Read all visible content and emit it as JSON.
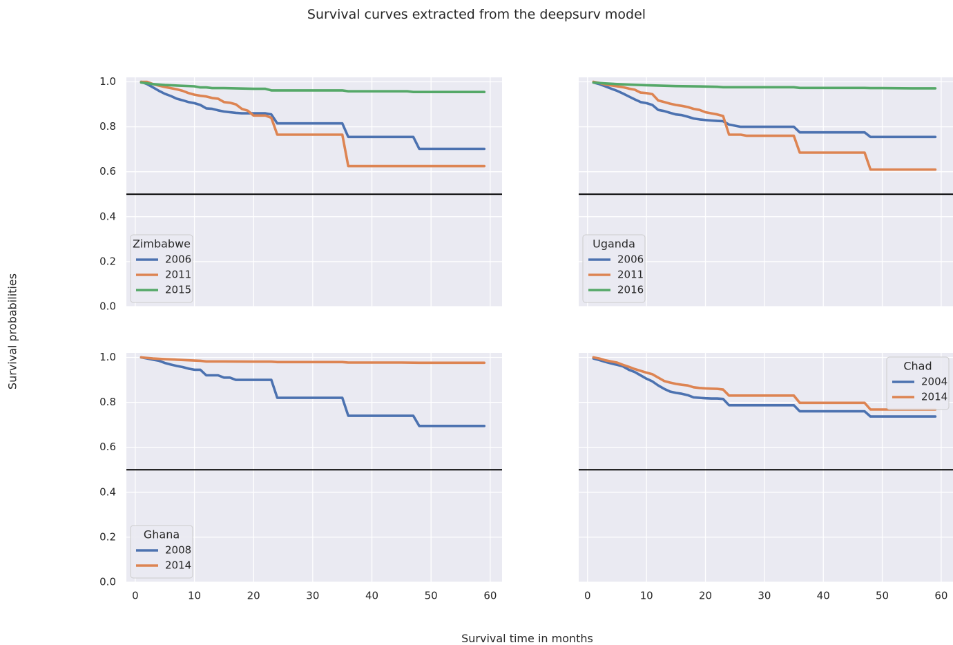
{
  "figure": {
    "title": "Survival curves extracted from the deepsurv model",
    "xlabel": "Survival time in months",
    "ylabel": "Survival probabilities"
  },
  "colors": {
    "axes_bg": "#eaeaf2",
    "grid": "#ffffff",
    "series": [
      "#4c72b0",
      "#dd8452",
      "#55a868"
    ],
    "threshold_line": "#000000",
    "text": "#262626"
  },
  "chart_data": [
    {
      "type": "line",
      "panel": "top-left",
      "legend_title": "Zimbabwe",
      "legend_position": "lower-left",
      "xlim": [
        -1.5,
        62
      ],
      "ylim": [
        0,
        1.02
      ],
      "xticks": [],
      "yticks": [
        0.0,
        0.2,
        0.4,
        0.6,
        0.8,
        1.0
      ],
      "grid": true,
      "hline": 0.5,
      "series": [
        {
          "name": "2006",
          "x": [
            1,
            2,
            3,
            4,
            5,
            6,
            7,
            8,
            9,
            10,
            11,
            12,
            13,
            14,
            15,
            16,
            17,
            18,
            19,
            20,
            21,
            22,
            23,
            24,
            25,
            30,
            35,
            36,
            40,
            45,
            47,
            48,
            50,
            55,
            59
          ],
          "y": [
            1.0,
            0.99,
            0.975,
            0.96,
            0.947,
            0.937,
            0.925,
            0.918,
            0.91,
            0.905,
            0.897,
            0.882,
            0.88,
            0.873,
            0.868,
            0.865,
            0.862,
            0.86,
            0.86,
            0.86,
            0.86,
            0.86,
            0.855,
            0.815,
            0.815,
            0.815,
            0.815,
            0.755,
            0.755,
            0.755,
            0.755,
            0.702,
            0.702,
            0.702,
            0.702
          ]
        },
        {
          "name": "2011",
          "x": [
            1,
            2,
            3,
            4,
            5,
            6,
            7,
            8,
            9,
            10,
            11,
            12,
            13,
            14,
            15,
            16,
            17,
            18,
            19,
            20,
            21,
            22,
            23,
            24,
            25,
            30,
            35,
            36,
            40,
            45,
            50,
            55,
            59
          ],
          "y": [
            1.0,
            1.0,
            0.99,
            0.983,
            0.977,
            0.972,
            0.967,
            0.96,
            0.95,
            0.943,
            0.938,
            0.935,
            0.928,
            0.925,
            0.91,
            0.907,
            0.9,
            0.88,
            0.872,
            0.85,
            0.85,
            0.85,
            0.84,
            0.765,
            0.765,
            0.765,
            0.765,
            0.625,
            0.625,
            0.625,
            0.625,
            0.625,
            0.625
          ]
        },
        {
          "name": "2015",
          "x": [
            1,
            3,
            5,
            10,
            11,
            12,
            13,
            15,
            20,
            21,
            22,
            23,
            25,
            30,
            35,
            36,
            40,
            46,
            47,
            50,
            55,
            59
          ],
          "y": [
            0.997,
            0.99,
            0.986,
            0.98,
            0.975,
            0.975,
            0.972,
            0.972,
            0.969,
            0.969,
            0.969,
            0.962,
            0.962,
            0.962,
            0.962,
            0.958,
            0.958,
            0.958,
            0.955,
            0.955,
            0.955,
            0.955
          ]
        }
      ]
    },
    {
      "type": "line",
      "panel": "top-right",
      "legend_title": "Uganda",
      "legend_position": "lower-left",
      "xlim": [
        -1.5,
        62
      ],
      "ylim": [
        0,
        1.02
      ],
      "xticks": [],
      "yticks": [],
      "grid": true,
      "hline": 0.5,
      "series": [
        {
          "name": "2006",
          "x": [
            1,
            2,
            3,
            4,
            5,
            6,
            7,
            8,
            9,
            10,
            11,
            12,
            13,
            14,
            15,
            16,
            17,
            18,
            19,
            20,
            21,
            22,
            23,
            24,
            25,
            26,
            30,
            35,
            36,
            40,
            45,
            47,
            48,
            50,
            55,
            59
          ],
          "y": [
            0.997,
            0.99,
            0.98,
            0.97,
            0.96,
            0.948,
            0.935,
            0.922,
            0.91,
            0.905,
            0.897,
            0.875,
            0.87,
            0.862,
            0.855,
            0.852,
            0.845,
            0.837,
            0.833,
            0.83,
            0.828,
            0.826,
            0.825,
            0.81,
            0.805,
            0.8,
            0.8,
            0.8,
            0.775,
            0.775,
            0.775,
            0.775,
            0.755,
            0.755,
            0.755,
            0.755
          ]
        },
        {
          "name": "2011",
          "x": [
            1,
            2,
            3,
            4,
            5,
            6,
            7,
            8,
            9,
            10,
            11,
            12,
            13,
            14,
            15,
            16,
            17,
            18,
            19,
            20,
            21,
            22,
            23,
            24,
            25,
            26,
            27,
            30,
            35,
            36,
            40,
            45,
            47,
            48,
            50,
            55,
            59
          ],
          "y": [
            1.0,
            0.995,
            0.988,
            0.984,
            0.98,
            0.976,
            0.97,
            0.965,
            0.952,
            0.95,
            0.945,
            0.917,
            0.91,
            0.903,
            0.897,
            0.893,
            0.888,
            0.88,
            0.875,
            0.865,
            0.86,
            0.855,
            0.848,
            0.765,
            0.765,
            0.765,
            0.76,
            0.76,
            0.76,
            0.685,
            0.685,
            0.685,
            0.685,
            0.61,
            0.61,
            0.61,
            0.61
          ]
        },
        {
          "name": "2016",
          "x": [
            1,
            3,
            5,
            10,
            15,
            20,
            22,
            23,
            25,
            30,
            35,
            36,
            40,
            45,
            47,
            48,
            50,
            55,
            59
          ],
          "y": [
            0.997,
            0.993,
            0.99,
            0.985,
            0.981,
            0.979,
            0.978,
            0.976,
            0.976,
            0.976,
            0.976,
            0.973,
            0.973,
            0.973,
            0.973,
            0.972,
            0.972,
            0.971,
            0.971
          ]
        }
      ]
    },
    {
      "type": "line",
      "panel": "bottom-left",
      "legend_title": "Ghana",
      "legend_position": "lower-left",
      "xlim": [
        -1.5,
        62
      ],
      "ylim": [
        0,
        1.02
      ],
      "xticks": [
        0,
        10,
        20,
        30,
        40,
        50,
        60
      ],
      "yticks": [
        0.0,
        0.2,
        0.4,
        0.6,
        0.8,
        1.0
      ],
      "grid": true,
      "hline": 0.5,
      "series": [
        {
          "name": "2008",
          "x": [
            1,
            2,
            3,
            4,
            5,
            6,
            7,
            8,
            9,
            10,
            11,
            12,
            13,
            14,
            15,
            16,
            17,
            18,
            19,
            20,
            21,
            22,
            23,
            24,
            25,
            30,
            35,
            36,
            40,
            45,
            47,
            48,
            50,
            55,
            59
          ],
          "y": [
            1.0,
            0.995,
            0.99,
            0.985,
            0.975,
            0.968,
            0.962,
            0.957,
            0.95,
            0.945,
            0.945,
            0.92,
            0.92,
            0.92,
            0.91,
            0.91,
            0.9,
            0.9,
            0.9,
            0.9,
            0.9,
            0.9,
            0.9,
            0.82,
            0.82,
            0.82,
            0.82,
            0.74,
            0.74,
            0.74,
            0.74,
            0.695,
            0.695,
            0.695,
            0.695
          ]
        },
        {
          "name": "2014",
          "x": [
            1,
            3,
            5,
            10,
            11,
            12,
            15,
            20,
            23,
            24,
            25,
            30,
            35,
            36,
            40,
            45,
            48,
            50,
            55,
            59
          ],
          "y": [
            1.0,
            0.995,
            0.992,
            0.986,
            0.985,
            0.982,
            0.982,
            0.981,
            0.981,
            0.979,
            0.979,
            0.979,
            0.979,
            0.977,
            0.977,
            0.977,
            0.976,
            0.976,
            0.976,
            0.976
          ]
        }
      ]
    },
    {
      "type": "line",
      "panel": "bottom-right",
      "legend_title": "Chad",
      "legend_position": "upper-right",
      "xlim": [
        -1.5,
        62
      ],
      "ylim": [
        0,
        1.02
      ],
      "xticks": [
        0,
        10,
        20,
        30,
        40,
        50,
        60
      ],
      "yticks": [],
      "grid": true,
      "hline": 0.5,
      "series": [
        {
          "name": "2004",
          "x": [
            1,
            2,
            3,
            4,
            5,
            6,
            7,
            8,
            9,
            10,
            11,
            12,
            13,
            14,
            15,
            16,
            17,
            18,
            19,
            20,
            21,
            22,
            23,
            24,
            25,
            30,
            35,
            36,
            40,
            45,
            47,
            48,
            50,
            55,
            59
          ],
          "y": [
            0.995,
            0.988,
            0.98,
            0.973,
            0.967,
            0.96,
            0.945,
            0.935,
            0.92,
            0.905,
            0.893,
            0.875,
            0.86,
            0.848,
            0.842,
            0.838,
            0.832,
            0.822,
            0.82,
            0.818,
            0.817,
            0.817,
            0.815,
            0.787,
            0.787,
            0.787,
            0.787,
            0.76,
            0.76,
            0.76,
            0.76,
            0.737,
            0.737,
            0.737,
            0.737
          ]
        },
        {
          "name": "2014",
          "x": [
            1,
            2,
            3,
            4,
            5,
            6,
            7,
            8,
            9,
            10,
            11,
            12,
            13,
            14,
            15,
            16,
            17,
            18,
            19,
            20,
            21,
            22,
            23,
            24,
            25,
            30,
            35,
            36,
            40,
            45,
            47,
            48,
            50,
            55,
            59
          ],
          "y": [
            1.0,
            0.995,
            0.987,
            0.982,
            0.977,
            0.967,
            0.958,
            0.948,
            0.94,
            0.932,
            0.925,
            0.91,
            0.895,
            0.888,
            0.882,
            0.878,
            0.875,
            0.867,
            0.864,
            0.862,
            0.861,
            0.86,
            0.857,
            0.83,
            0.83,
            0.83,
            0.83,
            0.798,
            0.798,
            0.798,
            0.798,
            0.768,
            0.768,
            0.768,
            0.768
          ]
        }
      ]
    }
  ]
}
